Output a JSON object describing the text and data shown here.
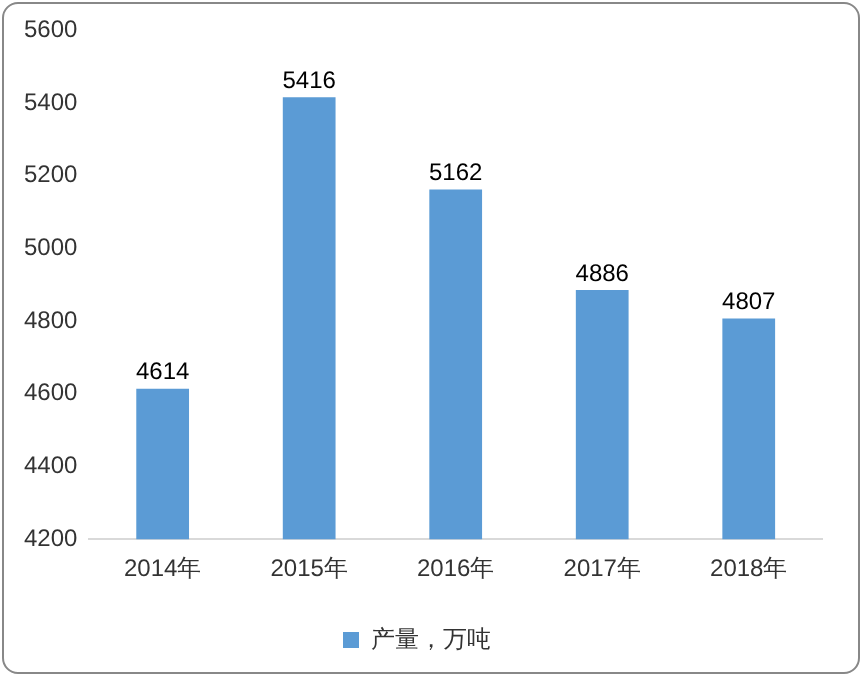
{
  "chart_data": {
    "type": "bar",
    "categories": [
      "2014年",
      "2015年",
      "2016年",
      "2017年",
      "2018年"
    ],
    "series": [
      {
        "name": "产量，万吨",
        "color": "#5b9bd5",
        "values": [
          4614,
          5416,
          5162,
          4886,
          4807
        ]
      }
    ],
    "ylim": [
      4200,
      5600
    ],
    "yticks": [
      4200,
      4400,
      4600,
      4800,
      5000,
      5200,
      5400,
      5600
    ],
    "grid": false,
    "legend": "bottom",
    "data_labels": true
  }
}
